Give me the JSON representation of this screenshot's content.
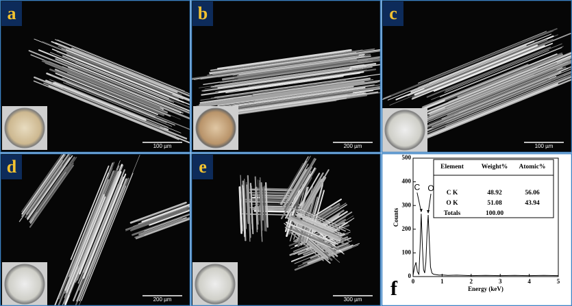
{
  "panels": [
    {
      "label": "a",
      "scale_bar": "100 µm"
    },
    {
      "label": "b",
      "scale_bar": "200 µm"
    },
    {
      "label": "c",
      "scale_bar": "100 µm"
    },
    {
      "label": "d",
      "scale_bar": "200 µm"
    },
    {
      "label": "e",
      "scale_bar": "300 µm"
    },
    {
      "label": "f"
    }
  ],
  "chart_data": {
    "type": "line",
    "x_label": "Energy (keV)",
    "y_label": "Counts",
    "x": [
      0,
      0.05,
      0.1,
      0.15,
      0.2,
      0.24,
      0.28,
      0.32,
      0.36,
      0.4,
      0.44,
      0.48,
      0.52,
      0.56,
      0.6,
      0.65,
      0.7,
      0.8,
      0.9,
      1,
      1.2,
      1.5,
      2,
      2.5,
      3,
      3.5,
      4,
      4.5,
      5
    ],
    "values": [
      5,
      40,
      60,
      20,
      10,
      120,
      265,
      130,
      30,
      15,
      60,
      180,
      260,
      150,
      40,
      15,
      10,
      8,
      6,
      7,
      5,
      6,
      4,
      5,
      4,
      5,
      4,
      5,
      4
    ],
    "color": "#000000",
    "xlim": [
      0,
      5
    ],
    "ylim": [
      0,
      500
    ],
    "xticks": [
      0,
      1,
      2,
      3,
      4,
      5
    ],
    "yticks": [
      0,
      100,
      200,
      300,
      400,
      500
    ],
    "annotations": [
      {
        "text": "C",
        "x": 0.28,
        "y": 265
      },
      {
        "text": "O",
        "x": 0.52,
        "y": 260
      }
    ]
  },
  "table": {
    "header": [
      "Element",
      "Weight%",
      "Atomic%"
    ],
    "rows": [
      [
        "C K",
        "48.92",
        "56.06"
      ],
      [
        "O K",
        "51.08",
        "43.94"
      ],
      [
        "Totals",
        "100.00"
      ]
    ]
  }
}
